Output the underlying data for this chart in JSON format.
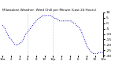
{
  "title": "Milwaukee Weather  Wind Chill per Minute (Last 24 Hours)",
  "line_color": "#0000cc",
  "background_color": "#ffffff",
  "vline_color": "#aaaaaa",
  "ylim": [
    -30,
    10
  ],
  "xlim": [
    0,
    1440
  ],
  "yticks": [
    10,
    5,
    0,
    -5,
    -10,
    -15,
    -20,
    -25,
    -30
  ],
  "ytick_labels": [
    "10",
    "5",
    "0",
    "-5",
    "-10",
    "-15",
    "-20",
    "-25",
    "-30"
  ],
  "y_values": [
    -2,
    -3,
    -4,
    -5,
    -7,
    -9,
    -10,
    -12,
    -14,
    -14,
    -15,
    -16,
    -17,
    -18,
    -19,
    -20,
    -20,
    -20,
    -20,
    -19,
    -19,
    -18,
    -18,
    -17,
    -16,
    -15,
    -13,
    -11,
    -10,
    -9,
    -8,
    -7,
    -6,
    -5,
    -4,
    -3,
    -2,
    -1,
    0,
    1,
    2,
    3,
    4,
    4,
    5,
    5,
    6,
    6,
    7,
    7,
    7,
    7,
    7,
    7,
    7,
    7,
    7,
    7,
    7,
    6,
    6,
    5,
    5,
    4,
    4,
    4,
    3,
    3,
    2,
    2,
    2,
    2,
    2,
    2,
    2,
    2,
    2,
    2,
    2,
    2,
    2,
    2,
    2,
    1,
    1,
    0,
    0,
    -1,
    -2,
    -3,
    -3,
    -4,
    -5,
    -6,
    -8,
    -10,
    -12,
    -14,
    -16,
    -18,
    -20,
    -22,
    -23,
    -24,
    -25,
    -26,
    -27,
    -27,
    -28,
    -28,
    -28,
    -28,
    -28,
    -28,
    -27,
    -27,
    -27,
    -27,
    -27,
    -27,
    -27
  ],
  "vline_positions": [
    360,
    720
  ],
  "xtick_positions": [
    0,
    120,
    240,
    360,
    480,
    600,
    720,
    840,
    960,
    1080,
    1200,
    1320,
    1440
  ],
  "xtick_labels": [
    "12a",
    "2",
    "4",
    "6",
    "8",
    "10",
    "12p",
    "2",
    "4",
    "6",
    "8",
    "10",
    "12a"
  ],
  "title_fontsize": 3.0,
  "ytick_fontsize": 3.2,
  "xtick_fontsize": 2.8,
  "linewidth": 0.7
}
